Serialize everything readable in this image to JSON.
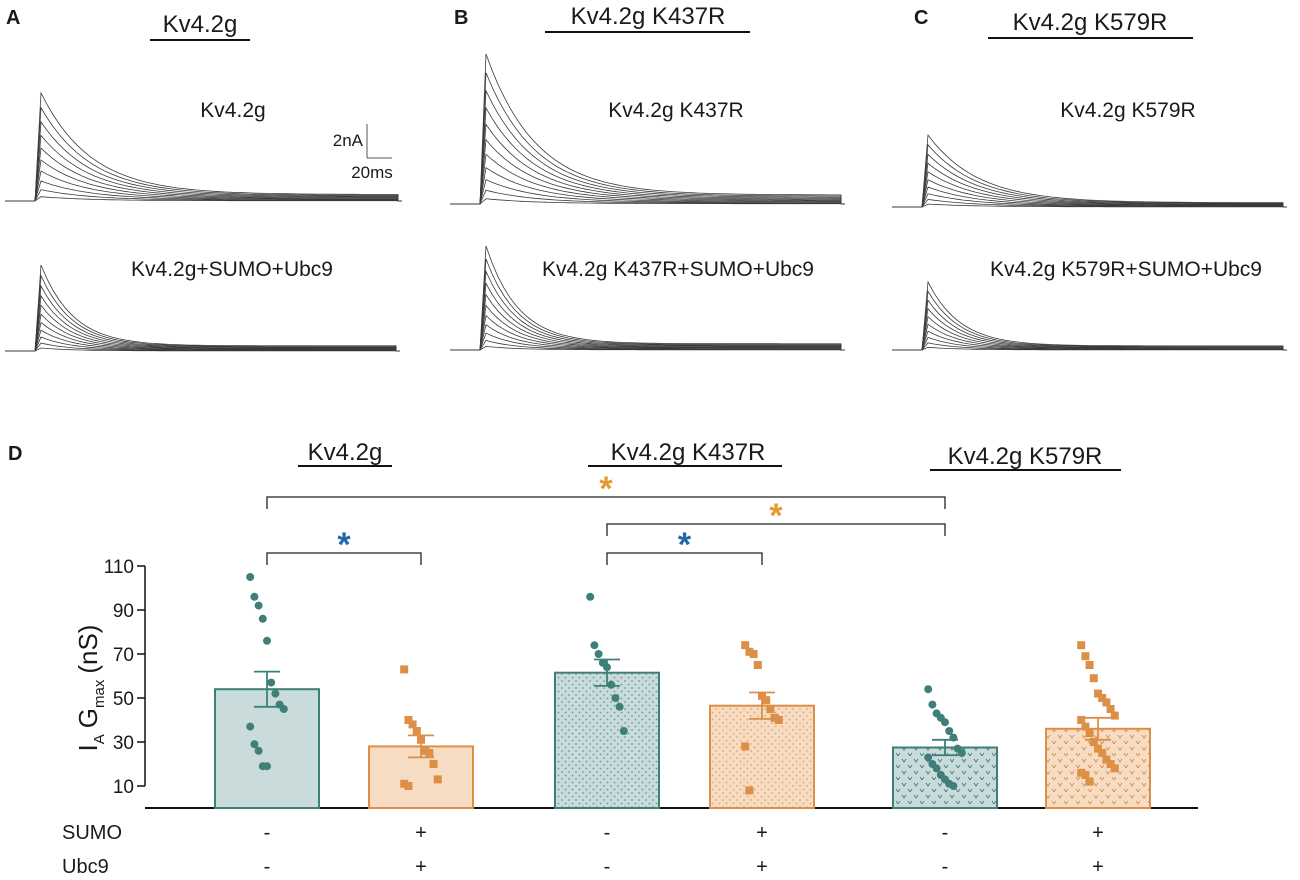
{
  "panels": [
    {
      "letter": "A",
      "title": "Kv4.2g",
      "top_label": "Kv4.2g",
      "bottom_label": "Kv4.2g+SUMO+Ubc9",
      "scale_current": "2nA",
      "scale_time": "20ms"
    },
    {
      "letter": "B",
      "title": "Kv4.2g K437R",
      "top_label": "Kv4.2g K437R",
      "bottom_label": "Kv4.2g K437R+SUMO+Ubc9"
    },
    {
      "letter": "C",
      "title": "Kv4.2g K579R",
      "top_label": "Kv4.2g K579R",
      "bottom_label": "Kv4.2g K579R+SUMO+Ubc9"
    }
  ],
  "colors": {
    "teal": "#3f7f7a",
    "teal_fill": "#c9dcdb",
    "orange": "#dd8f47",
    "orange_fill": "#f6dcc3",
    "star_blue": "#1f67a6",
    "star_orange": "#e69b2f",
    "trace": "#3a3a3a"
  },
  "chart_data": {
    "type": "bar",
    "panel_letter": "D",
    "ylabel": "I_A G_max (nS)",
    "ylabel_parts": {
      "main1": "I",
      "sub1": "A",
      "main2": "G",
      "sub2": "max",
      "unit": "(nS)"
    },
    "ylim": [
      0,
      110
    ],
    "yticks": [
      10,
      30,
      50,
      70,
      90,
      110
    ],
    "groups": [
      "Kv4.2g",
      "Kv4.2g K437R",
      "Kv4.2g K579R"
    ],
    "row_labels": {
      "sumo": "SUMO",
      "ubc9": "Ubc9"
    },
    "bars": [
      {
        "group": "Kv4.2g",
        "sumo": "-",
        "ubc9": "-",
        "mean": 54,
        "sem": 8,
        "color": "teal",
        "pattern": "none",
        "points": [
          105,
          96,
          92,
          86,
          76,
          57,
          52,
          47,
          45,
          37,
          29,
          26,
          19,
          19
        ]
      },
      {
        "group": "Kv4.2g",
        "sumo": "+",
        "ubc9": "+",
        "mean": 28,
        "sem": 5,
        "color": "orange",
        "pattern": "none",
        "points": [
          63,
          40,
          38,
          35,
          31,
          26,
          25,
          20,
          13,
          11,
          10
        ]
      },
      {
        "group": "Kv4.2g K437R",
        "sumo": "-",
        "ubc9": "-",
        "mean": 61.5,
        "sem": 6,
        "color": "teal",
        "pattern": "dots",
        "points": [
          96,
          74,
          70,
          66,
          64,
          56,
          50,
          46,
          35
        ]
      },
      {
        "group": "Kv4.2g K437R",
        "sumo": "+",
        "ubc9": "+",
        "mean": 46.5,
        "sem": 6,
        "color": "orange",
        "pattern": "dots",
        "points": [
          74,
          71,
          70,
          65,
          51,
          49,
          45,
          41,
          40,
          28,
          8
        ]
      },
      {
        "group": "Kv4.2g K579R",
        "sumo": "-",
        "ubc9": "-",
        "mean": 27.5,
        "sem": 3.5,
        "color": "teal",
        "pattern": "chevrons",
        "points": [
          54,
          47,
          43,
          41,
          39,
          35,
          32,
          27,
          25,
          23,
          20,
          18,
          15,
          13,
          11,
          10
        ]
      },
      {
        "group": "Kv4.2g K579R",
        "sumo": "+",
        "ubc9": "+",
        "mean": 36,
        "sem": 5,
        "color": "orange",
        "pattern": "chevrons",
        "points": [
          74,
          69,
          65,
          59,
          52,
          50,
          48,
          45,
          42,
          40,
          37,
          34,
          30,
          27,
          25,
          22,
          20,
          18,
          16,
          15,
          12
        ]
      }
    ],
    "significance": [
      {
        "from": 0,
        "to": 1,
        "label": "*",
        "color": "star_blue"
      },
      {
        "from": 2,
        "to": 3,
        "label": "*",
        "color": "star_blue"
      },
      {
        "from": 2,
        "to": 4,
        "label": "*",
        "color": "star_orange"
      },
      {
        "from": 0,
        "to": 4,
        "label": "*",
        "color": "star_orange"
      }
    ]
  }
}
